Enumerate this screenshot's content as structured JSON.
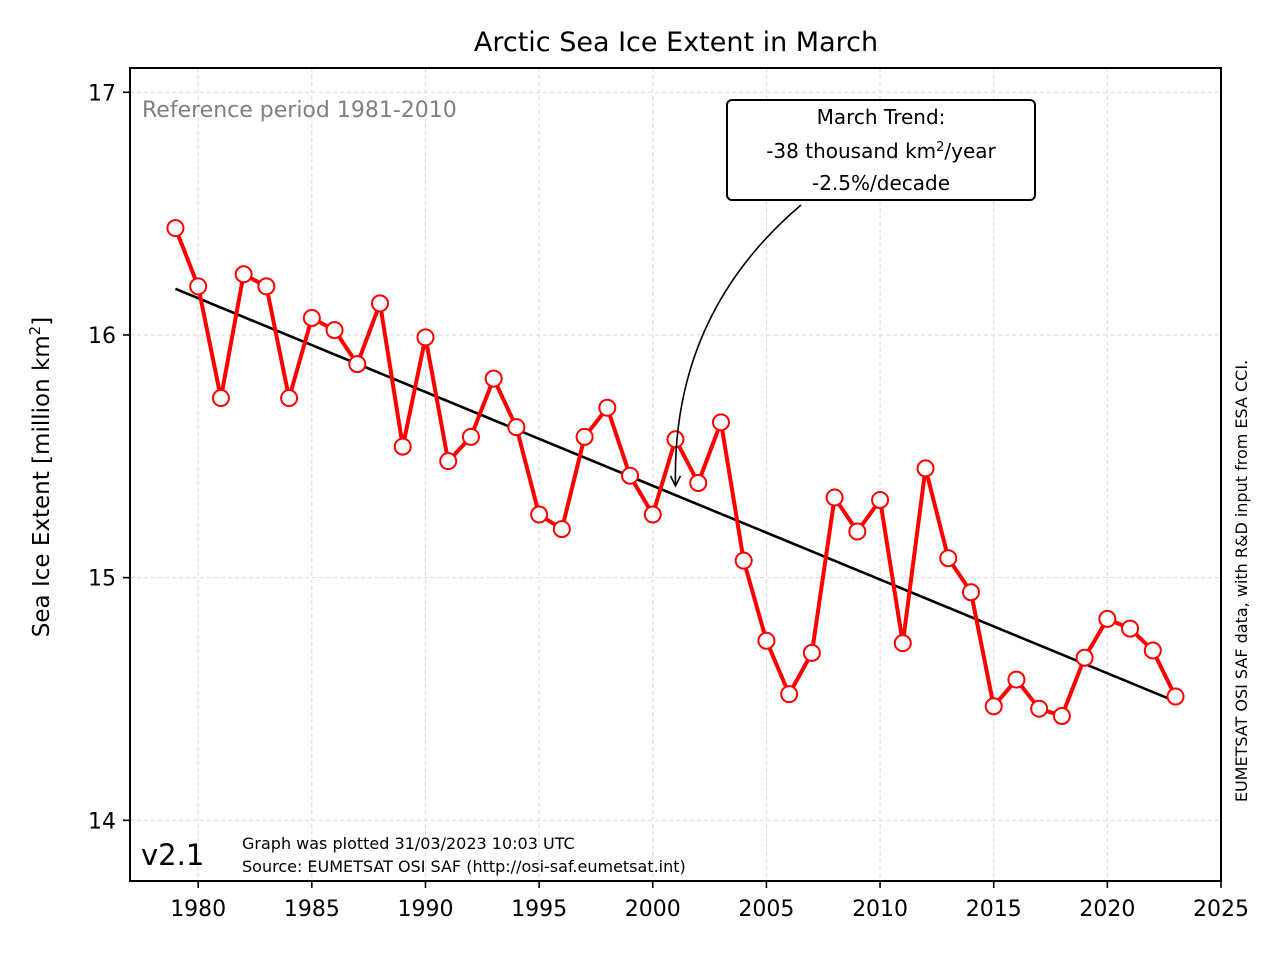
{
  "chart_data": {
    "type": "line",
    "title": "Arctic Sea Ice Extent in March",
    "ylabel": "Sea Ice Extent [million km²]",
    "ylabel_parts": {
      "main": "Sea Ice Extent [million km",
      "sup": "2",
      "end": "]"
    },
    "xlabel": "",
    "xlim": [
      1977,
      2025
    ],
    "ylim": [
      13.75,
      17.1
    ],
    "xticks": [
      1980,
      1985,
      1990,
      1995,
      2000,
      2005,
      2010,
      2015,
      2020,
      2025
    ],
    "yticks": [
      14,
      15,
      16,
      17
    ],
    "grid": true,
    "x": [
      1979,
      1980,
      1981,
      1982,
      1983,
      1984,
      1985,
      1986,
      1987,
      1988,
      1989,
      1990,
      1991,
      1992,
      1993,
      1994,
      1995,
      1996,
      1997,
      1998,
      1999,
      2000,
      2001,
      2002,
      2003,
      2004,
      2005,
      2006,
      2007,
      2008,
      2009,
      2010,
      2011,
      2012,
      2013,
      2014,
      2015,
      2016,
      2017,
      2018,
      2019,
      2020,
      2021,
      2022,
      2023
    ],
    "series": [
      {
        "values": [
          16.44,
          16.2,
          15.74,
          16.25,
          16.2,
          15.74,
          16.07,
          16.02,
          15.88,
          16.13,
          15.54,
          15.99,
          15.48,
          15.58,
          15.82,
          15.62,
          15.26,
          15.2,
          15.58,
          15.7,
          15.42,
          15.26,
          15.57,
          15.39,
          15.64,
          15.07,
          14.74,
          14.52,
          14.69,
          15.33,
          15.19,
          15.32,
          14.73,
          15.45,
          15.08,
          14.94,
          14.47,
          14.58,
          14.46,
          14.43,
          14.67,
          14.83,
          14.79,
          14.7,
          14.51
        ],
        "color": "#ff0000",
        "marker": "circle"
      }
    ],
    "trend": {
      "x": [
        1979,
        2023
      ],
      "y": [
        16.19,
        14.49
      ],
      "color": "#000000"
    },
    "annotations": {
      "reference": "Reference period 1981-2010",
      "trend_box_line1": "March Trend:",
      "trend_box_line2_a": "-38 thousand km",
      "trend_box_line2_sup": "2",
      "trend_box_line2_b": "/year",
      "trend_box_line3": "-2.5%/decade",
      "arrow_target": {
        "x": 2001,
        "y": 15.37
      },
      "version": "v2.1",
      "plotted": "Graph was plotted 31/03/2023 10:03 UTC",
      "source": "Source: EUMETSAT OSI SAF (http://osi-saf.eumetsat.int)",
      "credit": "EUMETSAT OSI SAF data, with R&D input from ESA CCI."
    }
  }
}
